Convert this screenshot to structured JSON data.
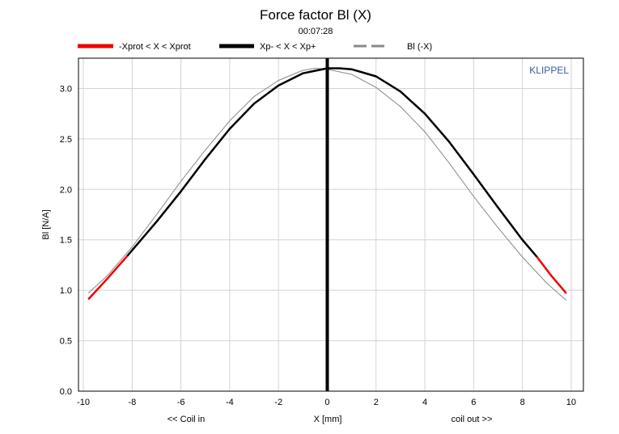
{
  "chart_data": {
    "type": "line",
    "title": "Force factor Bl (X)",
    "subtitle": "00:07:28",
    "xlabel": "X [mm]",
    "ylabel": "Bl [N/A]",
    "x_left_note": "<< Coil in",
    "x_right_note": "coil out >>",
    "watermark": "KLIPPEL",
    "xlim": [
      -10.2,
      10.5
    ],
    "ylim": [
      0,
      3.3
    ],
    "x_ticks": [
      -10,
      -8,
      -6,
      -4,
      -2,
      0,
      2,
      4,
      6,
      8,
      10
    ],
    "y_ticks": [
      0.0,
      0.5,
      1.0,
      1.5,
      2.0,
      2.5,
      3.0
    ],
    "y_tick_labels": [
      "0.0",
      "0.5",
      "1.0",
      "1.5",
      "2.0",
      "2.5",
      "3.0"
    ],
    "grid": true,
    "legend_position": "top",
    "vertical_marker_x": 0,
    "series": [
      {
        "name": "-Xprot < X < Xprot",
        "color": "#ee0000",
        "style": "solid",
        "x": [
          -9.8,
          -9,
          -8.2,
          8.6,
          9.2,
          9.8
        ],
        "y": [
          0.91,
          1.12,
          1.34,
          1.33,
          1.14,
          0.97
        ]
      },
      {
        "name": "Xp- < X < Xp+",
        "color": "#000000",
        "style": "solid",
        "x": [
          -8.2,
          -7,
          -6,
          -5,
          -4,
          -3,
          -2,
          -1,
          0,
          0.5,
          1,
          2,
          3,
          4,
          5,
          6,
          7,
          8,
          8.6
        ],
        "y": [
          1.34,
          1.68,
          1.98,
          2.3,
          2.6,
          2.85,
          3.03,
          3.15,
          3.2,
          3.2,
          3.19,
          3.12,
          2.97,
          2.75,
          2.47,
          2.15,
          1.82,
          1.5,
          1.33
        ]
      },
      {
        "name": "Bl (-X)",
        "color": "#888888",
        "style": "dashed",
        "x": [
          -9.8,
          -9,
          -8,
          -7,
          -6,
          -5,
          -4,
          -3,
          -2,
          -1,
          -0.5,
          0,
          1,
          2,
          3,
          4,
          5,
          6,
          7,
          8,
          9,
          9.8
        ],
        "y": [
          0.97,
          1.15,
          1.43,
          1.75,
          2.08,
          2.39,
          2.68,
          2.92,
          3.08,
          3.18,
          3.2,
          3.19,
          3.14,
          3.01,
          2.82,
          2.57,
          2.26,
          1.93,
          1.62,
          1.33,
          1.07,
          0.9
        ]
      }
    ]
  }
}
